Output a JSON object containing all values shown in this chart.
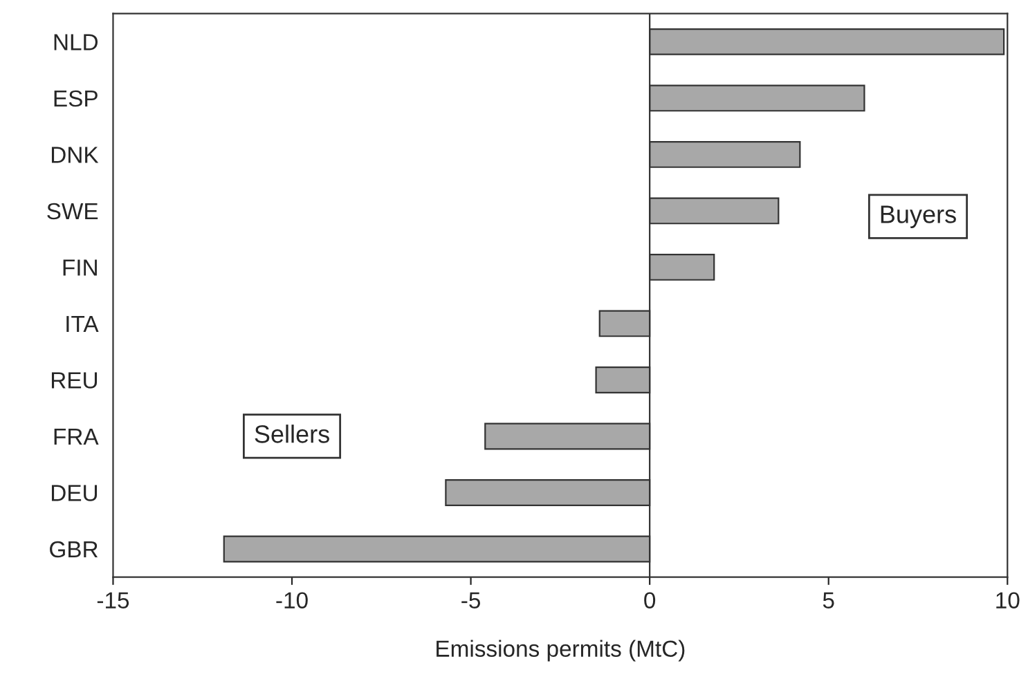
{
  "chart_data": {
    "type": "bar",
    "orientation": "horizontal",
    "xlabel": "Emissions permits (MtC)",
    "categories": [
      "NLD",
      "ESP",
      "DNK",
      "SWE",
      "FIN",
      "ITA",
      "REU",
      "FRA",
      "DEU",
      "GBR"
    ],
    "values": [
      9.9,
      6.0,
      4.2,
      3.6,
      1.8,
      -1.4,
      -1.5,
      -4.6,
      -5.7,
      -11.9
    ],
    "color": "#a8a8a8",
    "xlim": [
      -15,
      10
    ],
    "xticks": [
      -15,
      -10,
      -5,
      0,
      5,
      10
    ],
    "ref_lines": [
      {
        "axis": "x",
        "value": 0
      }
    ],
    "annotations": [
      "Buyers",
      "Sellers"
    ]
  }
}
